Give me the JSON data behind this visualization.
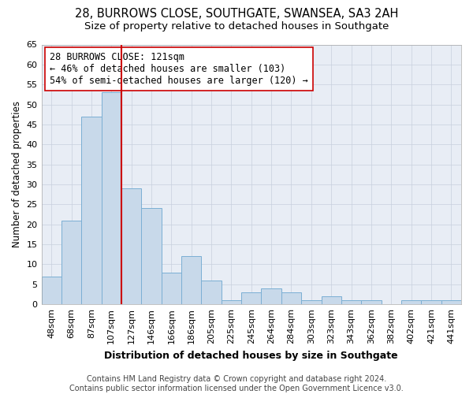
{
  "title": "28, BURROWS CLOSE, SOUTHGATE, SWANSEA, SA3 2AH",
  "subtitle": "Size of property relative to detached houses in Southgate",
  "xlabel": "Distribution of detached houses by size in Southgate",
  "ylabel": "Number of detached properties",
  "categories": [
    "48sqm",
    "68sqm",
    "87sqm",
    "107sqm",
    "127sqm",
    "146sqm",
    "166sqm",
    "186sqm",
    "205sqm",
    "225sqm",
    "245sqm",
    "264sqm",
    "284sqm",
    "303sqm",
    "323sqm",
    "343sqm",
    "362sqm",
    "382sqm",
    "402sqm",
    "421sqm",
    "441sqm"
  ],
  "values": [
    7,
    21,
    47,
    53,
    29,
    24,
    8,
    12,
    6,
    1,
    3,
    4,
    3,
    1,
    2,
    1,
    1,
    0,
    1,
    1,
    1
  ],
  "bar_color": "#c8d9ea",
  "bar_edge_color": "#7bafd4",
  "bar_edge_width": 0.7,
  "vline_color": "#cc0000",
  "vline_linewidth": 1.5,
  "vline_pos": 3.5,
  "annotation_text": "28 BURROWS CLOSE: 121sqm\n← 46% of detached houses are smaller (103)\n54% of semi-detached houses are larger (120) →",
  "annotation_box_edgecolor": "#cc0000",
  "annotation_box_facecolor": "#ffffff",
  "ylim": [
    0,
    65
  ],
  "yticks": [
    0,
    5,
    10,
    15,
    20,
    25,
    30,
    35,
    40,
    45,
    50,
    55,
    60,
    65
  ],
  "grid_color": "#c8d0de",
  "bg_color": "#ffffff",
  "plot_bg_color": "#e8edf5",
  "footer_line1": "Contains HM Land Registry data © Crown copyright and database right 2024.",
  "footer_line2": "Contains public sector information licensed under the Open Government Licence v3.0.",
  "title_fontsize": 10.5,
  "subtitle_fontsize": 9.5,
  "xlabel_fontsize": 9,
  "ylabel_fontsize": 8.5,
  "tick_fontsize": 8,
  "footer_fontsize": 7,
  "annotation_fontsize": 8.5
}
